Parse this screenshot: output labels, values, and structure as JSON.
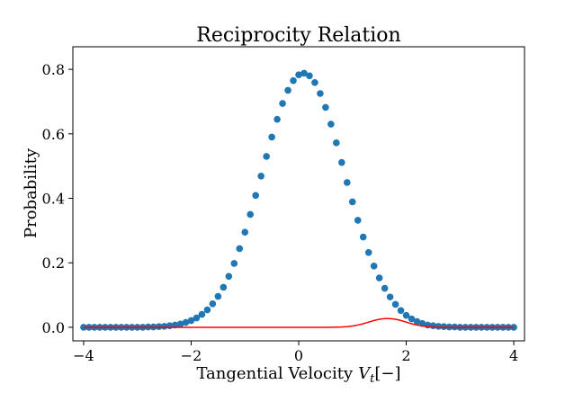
{
  "chart_data": {
    "type": "scatter",
    "title": "Reciprocity Relation",
    "xlabel": "Tangential Velocity",
    "xlabel_symbol": "V",
    "xlabel_subscript": "t",
    "xlabel_unit": "[−]",
    "ylabel": "Probability",
    "xlim": [
      -4.2,
      4.2
    ],
    "ylim": [
      -0.042,
      0.87
    ],
    "xticks": [
      -4,
      -2,
      0,
      2,
      4
    ],
    "xtick_labels": [
      "−4",
      "−2",
      "0",
      "2",
      "4"
    ],
    "yticks": [
      0.0,
      0.2,
      0.4,
      0.6,
      0.8
    ],
    "ytick_labels": [
      "0.0",
      "0.2",
      "0.4",
      "0.6",
      "0.8"
    ],
    "grid": false,
    "series": [
      {
        "kind": "scatter",
        "color": "#1f77b4",
        "x": [
          -4.0,
          -3.9,
          -3.8,
          -3.7,
          -3.6,
          -3.5,
          -3.4,
          -3.3,
          -3.2,
          -3.1,
          -3.0,
          -2.9,
          -2.8,
          -2.7,
          -2.6,
          -2.5,
          -2.4,
          -2.3,
          -2.2,
          -2.1,
          -2.0,
          -1.9,
          -1.8,
          -1.7,
          -1.6,
          -1.5,
          -1.4,
          -1.3,
          -1.2,
          -1.1,
          -1.0,
          -0.9,
          -0.8,
          -0.7,
          -0.6,
          -0.5,
          -0.4,
          -0.3,
          -0.2,
          -0.1,
          0.0,
          0.1,
          0.2,
          0.3,
          0.4,
          0.5,
          0.6,
          0.7,
          0.8,
          0.9,
          1.0,
          1.1,
          1.2,
          1.3,
          1.4,
          1.5,
          1.6,
          1.7,
          1.8,
          1.9,
          2.0,
          2.1,
          2.2,
          2.3,
          2.4,
          2.5,
          2.6,
          2.7,
          2.8,
          2.9,
          3.0,
          3.1,
          3.2,
          3.3,
          3.4,
          3.5,
          3.6,
          3.7,
          3.8,
          3.9,
          4.0
        ],
        "y": [
          0.0,
          0.0,
          0.0,
          0.0,
          0.0,
          0.0,
          0.0,
          0.0,
          0.0,
          0.0,
          0.0,
          0.0,
          0.001,
          0.001,
          0.002,
          0.003,
          0.005,
          0.007,
          0.01,
          0.015,
          0.021,
          0.029,
          0.04,
          0.054,
          0.073,
          0.096,
          0.124,
          0.158,
          0.198,
          0.244,
          0.295,
          0.35,
          0.409,
          0.469,
          0.53,
          0.59,
          0.645,
          0.694,
          0.735,
          0.765,
          0.783,
          0.788,
          0.78,
          0.759,
          0.725,
          0.682,
          0.63,
          0.572,
          0.511,
          0.449,
          0.389,
          0.332,
          0.28,
          0.232,
          0.19,
          0.153,
          0.121,
          0.094,
          0.071,
          0.052,
          0.037,
          0.026,
          0.018,
          0.012,
          0.007,
          0.005,
          0.003,
          0.002,
          0.001,
          0.001,
          0.0,
          0.0,
          0.0,
          0.0,
          0.0,
          0.0,
          0.0,
          0.0,
          0.0,
          0.0,
          0.0
        ]
      },
      {
        "kind": "line",
        "color": "#ff0000",
        "x": [
          -4.0,
          -3.5,
          -3.0,
          -2.5,
          -2.0,
          -1.5,
          -1.0,
          -0.5,
          0.0,
          0.5,
          0.8,
          0.9,
          1.0,
          1.1,
          1.2,
          1.3,
          1.4,
          1.5,
          1.6,
          1.7,
          1.8,
          1.9,
          2.0,
          2.1,
          2.2,
          2.3,
          2.4,
          2.5,
          2.6,
          2.8,
          3.0,
          3.5,
          4.0
        ],
        "y": [
          0.0,
          0.0,
          0.0,
          0.0,
          0.0,
          0.0,
          0.0,
          0.0,
          0.0,
          0.0,
          0.001,
          0.002,
          0.004,
          0.007,
          0.011,
          0.016,
          0.021,
          0.025,
          0.027,
          0.027,
          0.025,
          0.021,
          0.016,
          0.011,
          0.007,
          0.004,
          0.002,
          0.001,
          0.0,
          0.0,
          0.0,
          0.0,
          0.0
        ]
      }
    ]
  }
}
